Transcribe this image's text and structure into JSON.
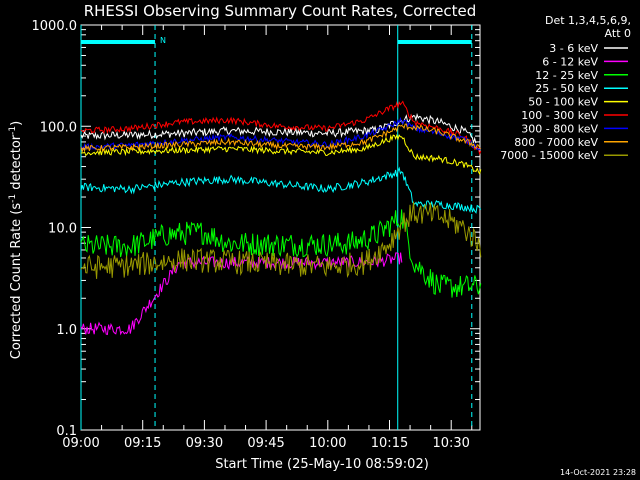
{
  "chart_data": {
    "type": "line",
    "title": "RHESSI Observing Summary Count Rates, Corrected",
    "xlabel": "Start Time (25-May-10 08:59:02)",
    "ylabel_main": "Corrected Count Rate (s",
    "ylabel_sup1": "-1",
    "ylabel_mid": " detector",
    "ylabel_sup2": "-1",
    "ylabel_end": ")",
    "y_scale": "log",
    "ylim": [
      0.1,
      1000.0
    ],
    "xlim": [
      "09:00",
      "10:37"
    ],
    "x_ticks": [
      "09:00",
      "09:15",
      "09:30",
      "09:45",
      "10:00",
      "10:15",
      "10:30"
    ],
    "y_ticks": [
      "0.1",
      "1.0",
      "10.0",
      "100.0",
      "1000.0"
    ],
    "legend_header": [
      "Det 1,3,4,5,6,9,",
      "Att 0"
    ],
    "legend_placement": "right",
    "timestamp": "14-Oct-2021 23:28",
    "annotation_n": "N",
    "markers": [
      {
        "time": "09:00",
        "color": "#00ffff",
        "style": "solid"
      },
      {
        "time": "09:18",
        "color": "#00ffff",
        "style": "dashed"
      },
      {
        "time": "10:17",
        "color": "#00ffff",
        "style": "solid"
      },
      {
        "time": "10:35",
        "color": "#00ffff",
        "style": "dashed"
      }
    ],
    "series": [
      {
        "name": "3 - 6 keV",
        "color": "#ffffff",
        "x": [
          9.0,
          9.2,
          9.4,
          9.6,
          9.8,
          10.0,
          10.2,
          10.28,
          10.35,
          10.45,
          10.55,
          10.6
        ],
        "y": [
          80,
          82,
          85,
          90,
          88,
          85,
          92,
          110,
          125,
          110,
          90,
          70
        ]
      },
      {
        "name": "6 - 12 keV",
        "color": "#ff00ff",
        "x": [
          9.0,
          9.2,
          9.4,
          9.6,
          9.8,
          10.0,
          10.2,
          10.3
        ],
        "y": [
          1.0,
          1.0,
          4.5,
          4.5,
          4.5,
          4.5,
          4.6,
          5.0
        ]
      },
      {
        "name": "12 - 25 keV",
        "color": "#00ff00",
        "x": [
          9.0,
          9.2,
          9.35,
          9.5,
          9.6,
          9.8,
          10.0,
          10.1,
          10.2,
          10.25,
          10.3,
          10.35,
          10.45,
          10.55,
          10.62
        ],
        "y": [
          6.5,
          6.5,
          8.5,
          9.0,
          7.0,
          6.8,
          6.8,
          7.0,
          8.5,
          10.5,
          13.0,
          4.5,
          2.6,
          2.6,
          2.6
        ]
      },
      {
        "name": "25 - 50 keV",
        "color": "#00ffff",
        "x": [
          9.0,
          9.2,
          9.4,
          9.6,
          9.8,
          10.0,
          10.15,
          10.25,
          10.3,
          10.35,
          10.45,
          10.55,
          10.62
        ],
        "y": [
          25,
          24,
          28,
          30,
          27,
          24,
          28,
          33,
          36,
          17,
          17,
          16,
          15
        ]
      },
      {
        "name": "50 - 100 keV",
        "color": "#ffff00",
        "x": [
          9.0,
          9.2,
          9.4,
          9.6,
          9.8,
          10.0,
          10.15,
          10.25,
          10.3,
          10.35,
          10.45,
          10.55,
          10.62
        ],
        "y": [
          55,
          56,
          58,
          60,
          57,
          55,
          60,
          75,
          80,
          50,
          48,
          42,
          35
        ]
      },
      {
        "name": "100 - 300 keV",
        "color": "#ff0000",
        "x": [
          9.0,
          9.2,
          9.4,
          9.6,
          9.8,
          10.0,
          10.15,
          10.25,
          10.3,
          10.35,
          10.45,
          10.55,
          10.62
        ],
        "y": [
          90,
          95,
          110,
          115,
          100,
          95,
          115,
          150,
          170,
          110,
          95,
          80,
          55
        ]
      },
      {
        "name": "300 - 800 keV",
        "color": "#0000ff",
        "x": [
          9.0,
          9.2,
          9.4,
          9.6,
          9.8,
          10.0,
          10.15,
          10.25,
          10.3,
          10.35,
          10.45,
          10.55,
          10.62
        ],
        "y": [
          62,
          65,
          72,
          78,
          72,
          66,
          80,
          100,
          115,
          95,
          85,
          75,
          60
        ]
      },
      {
        "name": "800 - 7000 keV",
        "color": "#ffa500",
        "x": [
          9.0,
          9.2,
          9.4,
          9.6,
          9.8,
          10.0,
          10.15,
          10.25,
          10.3,
          10.35,
          10.45,
          10.55,
          10.62
        ],
        "y": [
          60,
          62,
          66,
          70,
          64,
          62,
          70,
          88,
          100,
          98,
          88,
          72,
          62
        ]
      },
      {
        "name": "7000 - 15000 keV",
        "color": "#999900",
        "x": [
          9.0,
          9.2,
          9.4,
          9.6,
          9.8,
          10.0,
          10.15,
          10.25,
          10.3,
          10.35,
          10.45,
          10.55,
          10.62
        ],
        "y": [
          4.0,
          4.2,
          4.8,
          4.6,
          4.3,
          4.1,
          4.5,
          7.0,
          11.0,
          14.0,
          13.0,
          10.0,
          6.5
        ]
      }
    ]
  }
}
